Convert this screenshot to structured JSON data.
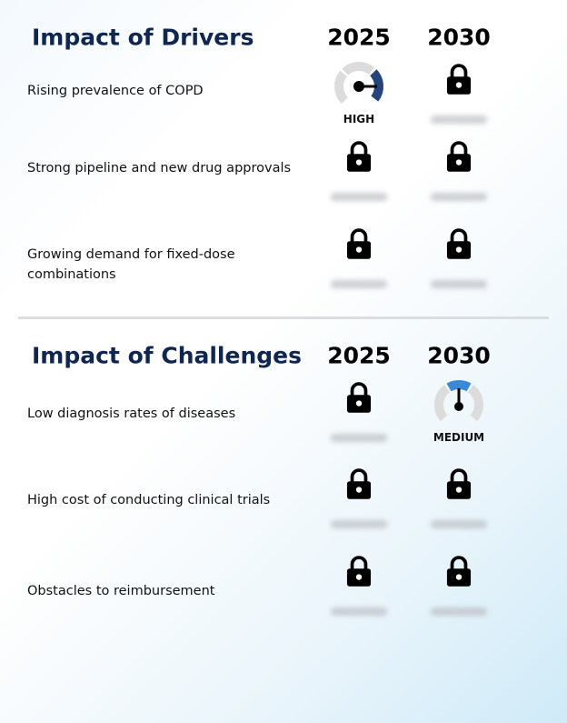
{
  "sections": [
    {
      "title": "Impact of Drivers",
      "years": [
        "2025",
        "2030"
      ],
      "rows": [
        {
          "label": "Rising prevalence of COPD",
          "rating_2025": "HIGH"
        },
        {
          "label": "Strong pipeline and new drug approvals"
        },
        {
          "label": "Growing demand for fixed-dose combinations"
        }
      ]
    },
    {
      "title": "Impact of Challenges",
      "years": [
        "2025",
        "2030"
      ],
      "rows": [
        {
          "label": "Low diagnosis rates of diseases",
          "rating_2030": "MEDIUM"
        },
        {
          "label": "High cost of conducting clinical trials"
        },
        {
          "label": "Obstacles to reimbursement"
        }
      ]
    }
  ]
}
